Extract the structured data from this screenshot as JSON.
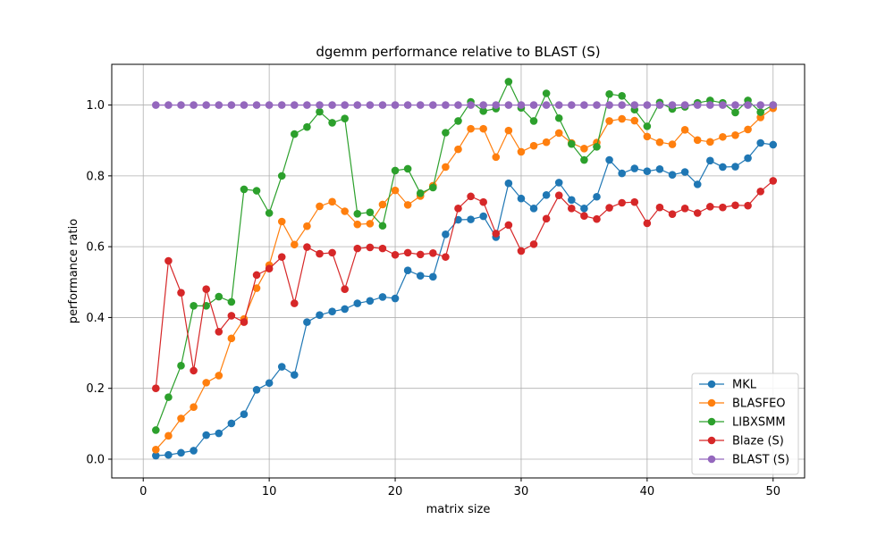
{
  "chart_data": {
    "type": "line",
    "title": "dgemm performance relative to BLAST (S)",
    "xlabel": "matrix size",
    "ylabel": "performance ratio",
    "xlim": [
      -2.5,
      52.5
    ],
    "ylim": [
      -0.053,
      1.115
    ],
    "grid": true,
    "legend_position": "lower-right",
    "x_ticks": [
      0,
      10,
      20,
      30,
      40,
      50
    ],
    "y_ticks": [
      0.0,
      0.2,
      0.4,
      0.6,
      0.8,
      1.0
    ],
    "x_tick_labels": [
      "0",
      "10",
      "20",
      "30",
      "40",
      "50"
    ],
    "y_tick_labels": [
      "0.0",
      "0.2",
      "0.4",
      "0.6",
      "0.8",
      "1.0"
    ],
    "x": [
      1,
      2,
      3,
      4,
      5,
      6,
      7,
      8,
      9,
      10,
      11,
      12,
      13,
      14,
      15,
      16,
      17,
      18,
      19,
      20,
      21,
      22,
      23,
      24,
      25,
      26,
      27,
      28,
      29,
      30,
      31,
      32,
      33,
      34,
      35,
      36,
      37,
      38,
      39,
      40,
      41,
      42,
      43,
      44,
      45,
      46,
      47,
      48,
      49,
      50
    ],
    "series": [
      {
        "name": "MKL",
        "color": "#1f77b4",
        "values": [
          0.01,
          0.012,
          0.018,
          0.024,
          0.068,
          0.073,
          0.101,
          0.127,
          0.196,
          0.215,
          0.261,
          0.238,
          0.387,
          0.407,
          0.417,
          0.424,
          0.44,
          0.447,
          0.458,
          0.454,
          0.533,
          0.518,
          0.515,
          0.635,
          0.676,
          0.677,
          0.686,
          0.627,
          0.779,
          0.736,
          0.708,
          0.746,
          0.781,
          0.732,
          0.708,
          0.741,
          0.845,
          0.807,
          0.821,
          0.813,
          0.819,
          0.803,
          0.811,
          0.776,
          0.843,
          0.825,
          0.826,
          0.85,
          0.893,
          0.888
        ]
      },
      {
        "name": "BLASFEO",
        "color": "#ff7f0e",
        "values": [
          0.027,
          0.066,
          0.115,
          0.147,
          0.216,
          0.236,
          0.341,
          0.396,
          0.483,
          0.548,
          0.671,
          0.606,
          0.658,
          0.714,
          0.727,
          0.7,
          0.663,
          0.665,
          0.719,
          0.759,
          0.718,
          0.743,
          0.772,
          0.825,
          0.875,
          0.933,
          0.933,
          0.853,
          0.928,
          0.868,
          0.885,
          0.895,
          0.921,
          0.893,
          0.877,
          0.894,
          0.955,
          0.961,
          0.956,
          0.911,
          0.895,
          0.889,
          0.93,
          0.901,
          0.896,
          0.91,
          0.915,
          0.931,
          0.965,
          0.991
        ]
      },
      {
        "name": "LIBXSMM",
        "color": "#2ca02c",
        "values": [
          0.082,
          0.175,
          0.264,
          0.433,
          0.433,
          0.459,
          0.444,
          0.762,
          0.758,
          0.695,
          0.8,
          0.918,
          0.938,
          0.981,
          0.95,
          0.962,
          0.693,
          0.697,
          0.659,
          0.815,
          0.82,
          0.751,
          0.767,
          0.922,
          0.955,
          1.009,
          0.983,
          0.99,
          1.066,
          0.992,
          0.955,
          1.033,
          0.963,
          0.89,
          0.845,
          0.882,
          1.031,
          1.026,
          0.987,
          0.94,
          1.007,
          0.989,
          0.995,
          1.006,
          1.013,
          1.006,
          0.979,
          1.013,
          0.98,
          1.0
        ]
      },
      {
        "name": "Blaze (S)",
        "color": "#d62728",
        "values": [
          0.2,
          0.56,
          0.47,
          0.25,
          0.48,
          0.36,
          0.405,
          0.387,
          0.52,
          0.538,
          0.571,
          0.44,
          0.599,
          0.58,
          0.583,
          0.48,
          0.595,
          0.598,
          0.595,
          0.577,
          0.583,
          0.578,
          0.582,
          0.571,
          0.708,
          0.742,
          0.726,
          0.637,
          0.661,
          0.588,
          0.607,
          0.679,
          0.745,
          0.708,
          0.687,
          0.678,
          0.71,
          0.724,
          0.726,
          0.666,
          0.711,
          0.692,
          0.708,
          0.695,
          0.713,
          0.711,
          0.717,
          0.716,
          0.756,
          0.786
        ]
      },
      {
        "name": "BLAST (S)",
        "color": "#9467bd",
        "values": [
          1,
          1,
          1,
          1,
          1,
          1,
          1,
          1,
          1,
          1,
          1,
          1,
          1,
          1,
          1,
          1,
          1,
          1,
          1,
          1,
          1,
          1,
          1,
          1,
          1,
          1,
          1,
          1,
          1,
          1,
          1,
          1,
          1,
          1,
          1,
          1,
          1,
          1,
          1,
          1,
          1,
          1,
          1,
          1,
          1,
          1,
          1,
          1,
          1,
          1
        ]
      }
    ]
  }
}
